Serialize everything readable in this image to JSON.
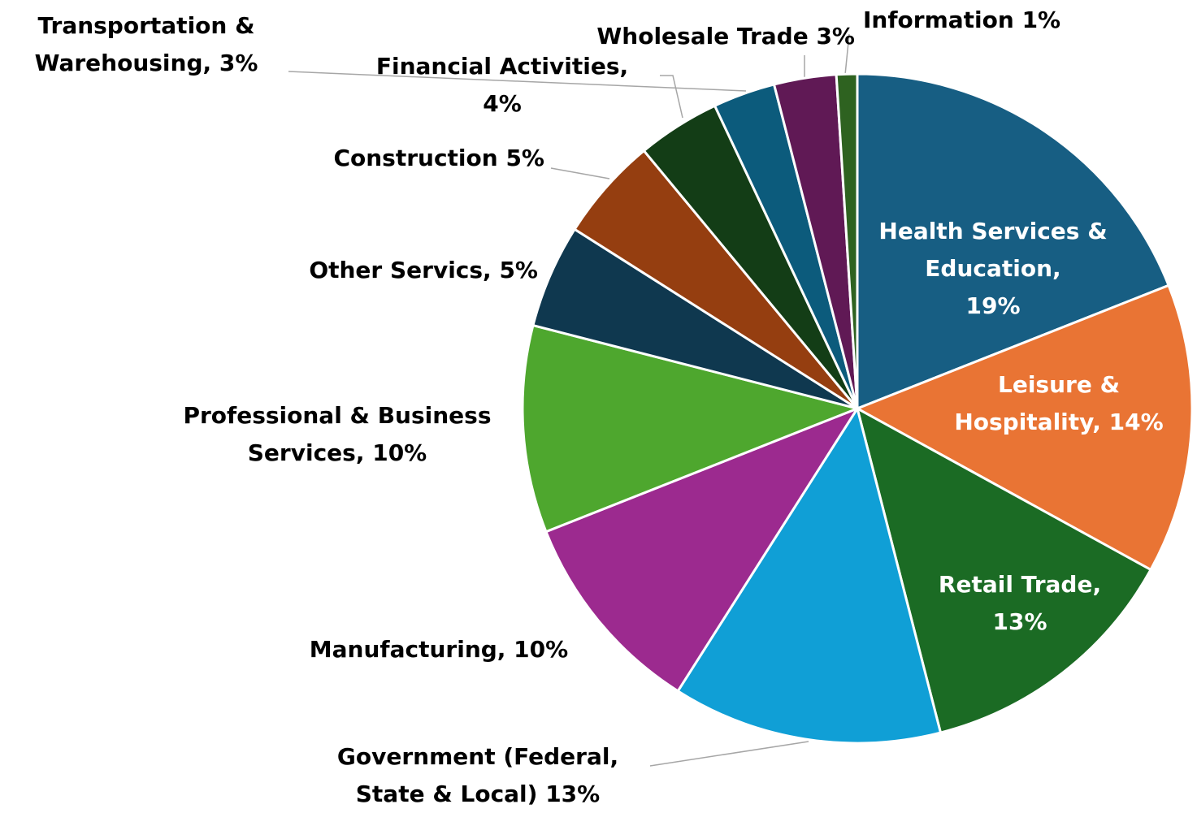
{
  "chart_data": {
    "type": "pie",
    "categories": [
      "Health Services & Education,",
      "Leisure & Hospitality,",
      "Retail Trade,",
      "Government (Federal, State & Local)",
      "Manufacturing,",
      "Professional & Business Services,",
      "Other Servics,",
      "Construction",
      "Financial Activities,",
      "Transportation & Warehousing,",
      "Wholesale Trade",
      "Information"
    ],
    "values": [
      19,
      14,
      13,
      13,
      10,
      10,
      5,
      5,
      4,
      3,
      3,
      1
    ],
    "value_labels": [
      "19%",
      "14%",
      "13%",
      "13%",
      "10%",
      "10%",
      "5%",
      "5%",
      "4%",
      "3%",
      "3%",
      "1%"
    ],
    "colors": [
      "#175e83",
      "#e97434",
      "#1b6b24",
      "#109fd6",
      "#9c2a8f",
      "#4ea72e",
      "#0f384f",
      "#953e10",
      "#133d16",
      "#0c5b7c",
      "#601955",
      "#2e6220"
    ]
  }
}
